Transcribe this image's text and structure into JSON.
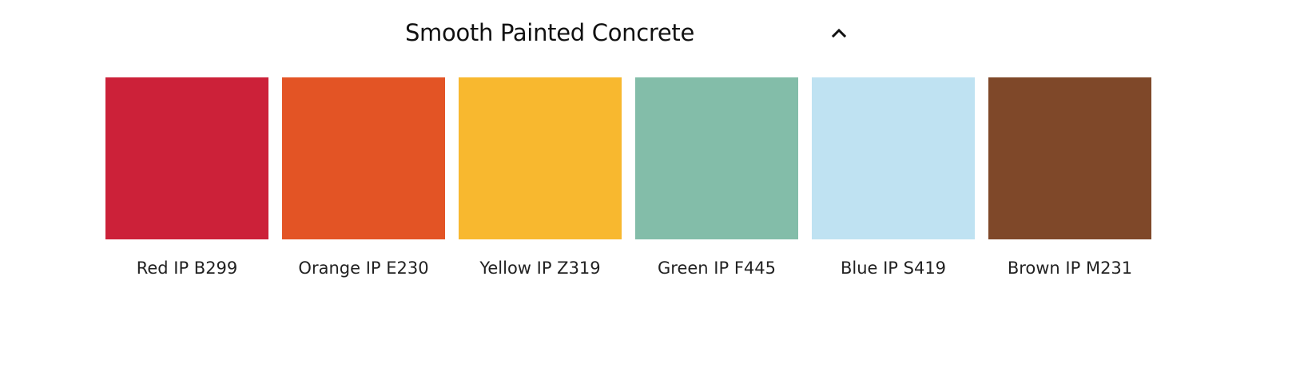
{
  "section": {
    "title": "Smooth Painted Concrete",
    "toggle_icon": "chevron-up-icon",
    "expanded": true
  },
  "swatches": [
    {
      "label": "Red IP B299",
      "color": "#CC2139"
    },
    {
      "label": "Orange IP E230",
      "color": "#E35425"
    },
    {
      "label": "Yellow IP Z319",
      "color": "#F8B82F"
    },
    {
      "label": "Green IP F445",
      "color": "#83BDA9"
    },
    {
      "label": "Blue IP S419",
      "color": "#BFE2F2"
    },
    {
      "label": "Brown IP M231",
      "color": "#7F4829"
    }
  ]
}
